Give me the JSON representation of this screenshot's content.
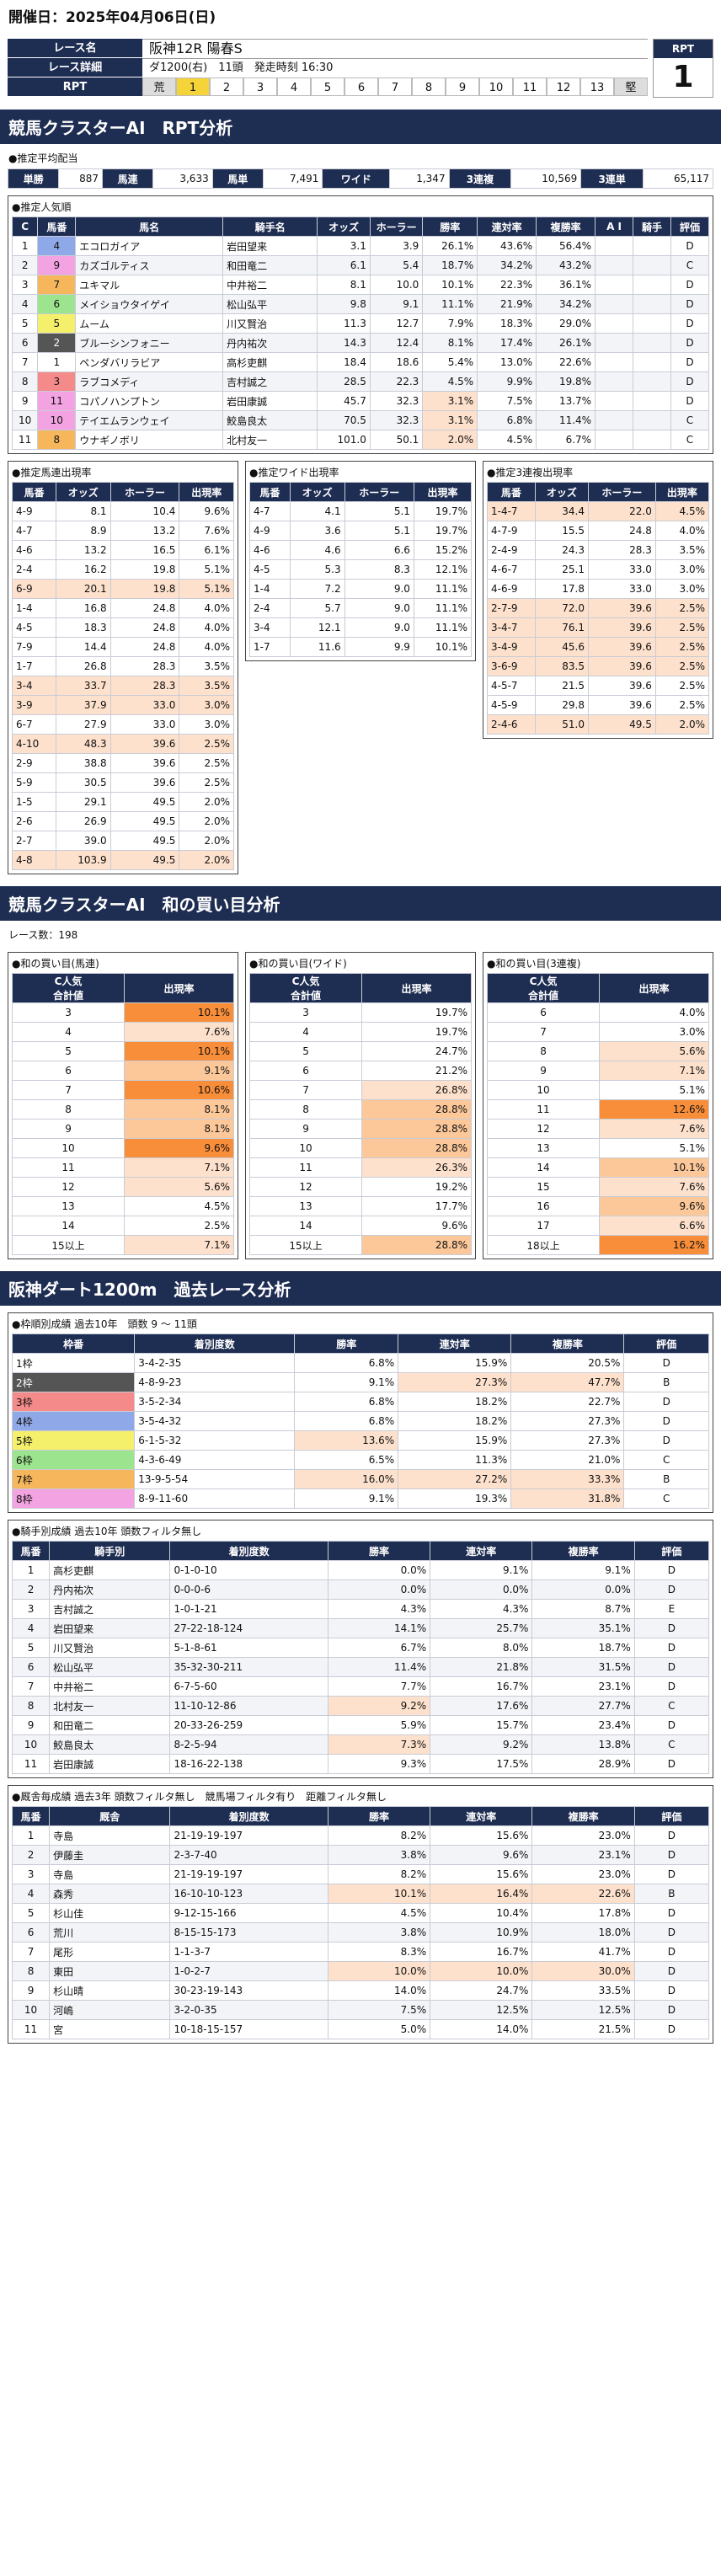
{
  "header": {
    "date": "開催日：2025年04月06日(日)"
  },
  "race": {
    "name_label": "レース名",
    "name": "阪神12R 陽春S",
    "detail_label": "レース詳細",
    "detail": "ダ1200(右)　11頭　発走時刻 16:30",
    "rpt_label": "RPT",
    "rpt_cells": [
      "荒",
      "1",
      "2",
      "3",
      "4",
      "5",
      "6",
      "7",
      "8",
      "9",
      "10",
      "11",
      "12",
      "13",
      "堅"
    ],
    "rpt_box_label": "RPT",
    "rpt_value": "1"
  },
  "section1": "競馬クラスターAI　RPT分析",
  "payout": {
    "title": "●推定平均配当",
    "items": [
      [
        "単勝",
        "887"
      ],
      [
        "馬連",
        "3,633"
      ],
      [
        "馬単",
        "7,491"
      ],
      [
        "ワイド",
        "1,347"
      ],
      [
        "3連複",
        "10,569"
      ],
      [
        "3連単",
        "65,117"
      ]
    ]
  },
  "popular": {
    "title": "●推定人気順",
    "headers": [
      "C",
      "馬番",
      "馬名",
      "騎手名",
      "オッズ",
      "ホーラー",
      "勝率",
      "連対率",
      "複勝率",
      "A I",
      "騎手",
      "評価"
    ],
    "rows": [
      [
        "1",
        "4",
        "エコロガイア",
        "岩田望来",
        "3.1",
        "3.9",
        "26.1%",
        "43.6%",
        "56.4%",
        "",
        "",
        "D"
      ],
      [
        "2",
        "9",
        "カズゴルティス",
        "和田竜二",
        "6.1",
        "5.4",
        "18.7%",
        "34.2%",
        "43.2%",
        "",
        "",
        "C"
      ],
      [
        "3",
        "7",
        "ユキマル",
        "中井裕二",
        "8.1",
        "10.0",
        "10.1%",
        "22.3%",
        "36.1%",
        "",
        "",
        "D"
      ],
      [
        "4",
        "6",
        "メイショウタイゲイ",
        "松山弘平",
        "9.8",
        "9.1",
        "11.1%",
        "21.9%",
        "34.2%",
        "",
        "",
        "D"
      ],
      [
        "5",
        "5",
        "ムーム",
        "川又賢治",
        "11.3",
        "12.7",
        "7.9%",
        "18.3%",
        "29.0%",
        "",
        "",
        "D"
      ],
      [
        "6",
        "2",
        "ブルーシンフォニー",
        "丹内祐次",
        "14.3",
        "12.4",
        "8.1%",
        "17.4%",
        "26.1%",
        "",
        "",
        "D"
      ],
      [
        "7",
        "1",
        "ペンダバリラビア",
        "高杉吏麒",
        "18.4",
        "18.6",
        "5.4%",
        "13.0%",
        "22.6%",
        "",
        "",
        "D"
      ],
      [
        "8",
        "3",
        "ラブコメディ",
        "吉村誠之",
        "28.5",
        "22.3",
        "4.5%",
        "9.9%",
        "19.8%",
        "",
        "",
        "D"
      ],
      [
        "9",
        "11",
        "コパノハンプトン",
        "岩田康誠",
        "45.7",
        "32.3",
        "3.1%",
        "7.5%",
        "13.7%",
        "",
        "",
        "D"
      ],
      [
        "10",
        "10",
        "テイエムランウェイ",
        "鮫島良太",
        "70.5",
        "32.3",
        "3.1%",
        "6.8%",
        "11.4%",
        "",
        "",
        "C"
      ],
      [
        "11",
        "8",
        "ウナギノボリ",
        "北村友一",
        "101.0",
        "50.1",
        "2.0%",
        "4.5%",
        "6.7%",
        "",
        "",
        "C"
      ]
    ]
  },
  "umaren": {
    "title": "●推定馬連出現率",
    "headers": [
      "馬番",
      "オッズ",
      "ホーラー",
      "出現率"
    ],
    "rows": [
      [
        "4-9",
        "8.1",
        "10.4",
        "9.6%"
      ],
      [
        "4-7",
        "8.9",
        "13.2",
        "7.6%"
      ],
      [
        "4-6",
        "13.2",
        "16.5",
        "6.1%"
      ],
      [
        "2-4",
        "16.2",
        "19.8",
        "5.1%"
      ],
      [
        "6-9",
        "20.1",
        "19.8",
        "5.1%"
      ],
      [
        "1-4",
        "16.8",
        "24.8",
        "4.0%"
      ],
      [
        "4-5",
        "18.3",
        "24.8",
        "4.0%"
      ],
      [
        "7-9",
        "14.4",
        "24.8",
        "4.0%"
      ],
      [
        "1-7",
        "26.8",
        "28.3",
        "3.5%"
      ],
      [
        "3-4",
        "33.7",
        "28.3",
        "3.5%"
      ],
      [
        "3-9",
        "37.9",
        "33.0",
        "3.0%"
      ],
      [
        "6-7",
        "27.9",
        "33.0",
        "3.0%"
      ],
      [
        "4-10",
        "48.3",
        "39.6",
        "2.5%"
      ],
      [
        "2-9",
        "38.8",
        "39.6",
        "2.5%"
      ],
      [
        "5-9",
        "30.5",
        "39.6",
        "2.5%"
      ],
      [
        "1-5",
        "29.1",
        "49.5",
        "2.0%"
      ],
      [
        "2-6",
        "26.9",
        "49.5",
        "2.0%"
      ],
      [
        "2-7",
        "39.0",
        "49.5",
        "2.0%"
      ],
      [
        "4-8",
        "103.9",
        "49.5",
        "2.0%"
      ]
    ]
  },
  "wide": {
    "title": "●推定ワイド出現率",
    "headers": [
      "馬番",
      "オッズ",
      "ホーラー",
      "出現率"
    ],
    "rows": [
      [
        "4-7",
        "4.1",
        "5.1",
        "19.7%"
      ],
      [
        "4-9",
        "3.6",
        "5.1",
        "19.7%"
      ],
      [
        "4-6",
        "4.6",
        "6.6",
        "15.2%"
      ],
      [
        "4-5",
        "5.3",
        "8.3",
        "12.1%"
      ],
      [
        "1-4",
        "7.2",
        "9.0",
        "11.1%"
      ],
      [
        "2-4",
        "5.7",
        "9.0",
        "11.1%"
      ],
      [
        "3-4",
        "12.1",
        "9.0",
        "11.1%"
      ],
      [
        "1-7",
        "11.6",
        "9.9",
        "10.1%"
      ]
    ]
  },
  "trio": {
    "title": "●推定3連複出現率",
    "headers": [
      "馬番",
      "オッズ",
      "ホーラー",
      "出現率"
    ],
    "rows": [
      [
        "1-4-7",
        "34.4",
        "22.0",
        "4.5%"
      ],
      [
        "4-7-9",
        "15.5",
        "24.8",
        "4.0%"
      ],
      [
        "2-4-9",
        "24.3",
        "28.3",
        "3.5%"
      ],
      [
        "4-6-7",
        "25.1",
        "33.0",
        "3.0%"
      ],
      [
        "4-6-9",
        "17.8",
        "33.0",
        "3.0%"
      ],
      [
        "2-7-9",
        "72.0",
        "39.6",
        "2.5%"
      ],
      [
        "3-4-7",
        "76.1",
        "39.6",
        "2.5%"
      ],
      [
        "3-4-9",
        "45.6",
        "39.6",
        "2.5%"
      ],
      [
        "3-6-9",
        "83.5",
        "39.6",
        "2.5%"
      ],
      [
        "4-5-7",
        "21.5",
        "39.6",
        "2.5%"
      ],
      [
        "4-5-9",
        "29.8",
        "39.6",
        "2.5%"
      ],
      [
        "2-4-6",
        "51.0",
        "49.5",
        "2.0%"
      ]
    ]
  },
  "section2": "競馬クラスターAI　和の買い目分析",
  "race_count": "レース数：198",
  "sum_umaren": {
    "title": "●和の買い目(馬連)",
    "headers": [
      "C人気\n合計値",
      "出現率"
    ],
    "rows": [
      [
        "3",
        "10.1%"
      ],
      [
        "4",
        "7.6%"
      ],
      [
        "5",
        "10.1%"
      ],
      [
        "6",
        "9.1%"
      ],
      [
        "7",
        "10.6%"
      ],
      [
        "8",
        "8.1%"
      ],
      [
        "9",
        "8.1%"
      ],
      [
        "10",
        "9.6%"
      ],
      [
        "11",
        "7.1%"
      ],
      [
        "12",
        "5.6%"
      ],
      [
        "13",
        "4.5%"
      ],
      [
        "14",
        "2.5%"
      ],
      [
        "15以上",
        "7.1%"
      ]
    ]
  },
  "sum_wide": {
    "title": "●和の買い目(ワイド)",
    "headers": [
      "C人気\n合計値",
      "出現率"
    ],
    "rows": [
      [
        "3",
        "19.7%"
      ],
      [
        "4",
        "19.7%"
      ],
      [
        "5",
        "24.7%"
      ],
      [
        "6",
        "21.2%"
      ],
      [
        "7",
        "26.8%"
      ],
      [
        "8",
        "28.8%"
      ],
      [
        "9",
        "28.8%"
      ],
      [
        "10",
        "28.8%"
      ],
      [
        "11",
        "26.3%"
      ],
      [
        "12",
        "19.2%"
      ],
      [
        "13",
        "17.7%"
      ],
      [
        "14",
        "9.6%"
      ],
      [
        "15以上",
        "28.8%"
      ]
    ]
  },
  "sum_trio": {
    "title": "●和の買い目(3連複)",
    "headers": [
      "C人気\n合計値",
      "出現率"
    ],
    "rows": [
      [
        "6",
        "4.0%"
      ],
      [
        "7",
        "3.0%"
      ],
      [
        "8",
        "5.6%"
      ],
      [
        "9",
        "7.1%"
      ],
      [
        "10",
        "5.1%"
      ],
      [
        "11",
        "12.6%"
      ],
      [
        "12",
        "7.6%"
      ],
      [
        "13",
        "5.1%"
      ],
      [
        "14",
        "10.1%"
      ],
      [
        "15",
        "7.6%"
      ],
      [
        "16",
        "9.6%"
      ],
      [
        "17",
        "6.6%"
      ],
      [
        "18以上",
        "16.2%"
      ]
    ]
  },
  "section3": "阪神ダート1200m　過去レース分析",
  "waku": {
    "title": "●枠順別成績 過去10年　頭数 9 ～ 11頭",
    "headers": [
      "枠番",
      "着別度数",
      "勝率",
      "連対率",
      "複勝率",
      "評価"
    ],
    "rows": [
      [
        "1枠",
        "3-4-2-35",
        "6.8%",
        "15.9%",
        "20.5%",
        "D"
      ],
      [
        "2枠",
        "4-8-9-23",
        "9.1%",
        "27.3%",
        "47.7%",
        "B"
      ],
      [
        "3枠",
        "3-5-2-34",
        "6.8%",
        "18.2%",
        "22.7%",
        "D"
      ],
      [
        "4枠",
        "3-5-4-32",
        "6.8%",
        "18.2%",
        "27.3%",
        "D"
      ],
      [
        "5枠",
        "6-1-5-32",
        "13.6%",
        "15.9%",
        "27.3%",
        "D"
      ],
      [
        "6枠",
        "4-3-6-49",
        "6.5%",
        "11.3%",
        "21.0%",
        "C"
      ],
      [
        "7枠",
        "13-9-5-54",
        "16.0%",
        "27.2%",
        "33.3%",
        "B"
      ],
      [
        "8枠",
        "8-9-11-60",
        "9.1%",
        "19.3%",
        "31.8%",
        "C"
      ]
    ]
  },
  "jockey": {
    "title": "●騎手別成績 過去10年 頭数フィルタ無し",
    "headers": [
      "馬番",
      "騎手別",
      "着別度数",
      "勝率",
      "連対率",
      "複勝率",
      "評価"
    ],
    "rows": [
      [
        "1",
        "高杉吏麒",
        "0-1-0-10",
        "0.0%",
        "9.1%",
        "9.1%",
        "D"
      ],
      [
        "2",
        "丹内祐次",
        "0-0-0-6",
        "0.0%",
        "0.0%",
        "0.0%",
        "D"
      ],
      [
        "3",
        "吉村誠之",
        "1-0-1-21",
        "4.3%",
        "4.3%",
        "8.7%",
        "E"
      ],
      [
        "4",
        "岩田望来",
        "27-22-18-124",
        "14.1%",
        "25.7%",
        "35.1%",
        "D"
      ],
      [
        "5",
        "川又賢治",
        "5-1-8-61",
        "6.7%",
        "8.0%",
        "18.7%",
        "D"
      ],
      [
        "6",
        "松山弘平",
        "35-32-30-211",
        "11.4%",
        "21.8%",
        "31.5%",
        "D"
      ],
      [
        "7",
        "中井裕二",
        "6-7-5-60",
        "7.7%",
        "16.7%",
        "23.1%",
        "D"
      ],
      [
        "8",
        "北村友一",
        "11-10-12-86",
        "9.2%",
        "17.6%",
        "27.7%",
        "C"
      ],
      [
        "9",
        "和田竜二",
        "20-33-26-259",
        "5.9%",
        "15.7%",
        "23.4%",
        "D"
      ],
      [
        "10",
        "鮫島良太",
        "8-2-5-94",
        "7.3%",
        "9.2%",
        "13.8%",
        "C"
      ],
      [
        "11",
        "岩田康誠",
        "18-16-22-138",
        "9.3%",
        "17.5%",
        "28.9%",
        "D"
      ]
    ]
  },
  "stable": {
    "title": "●厩舎毎成績 過去3年 頭数フィルタ無し　競馬場フィルタ有り　距離フィルタ無し",
    "headers": [
      "馬番",
      "厩舎",
      "着別度数",
      "勝率",
      "連対率",
      "複勝率",
      "評価"
    ],
    "rows": [
      [
        "1",
        "寺島",
        "21-19-19-197",
        "8.2%",
        "15.6%",
        "23.0%",
        "D"
      ],
      [
        "2",
        "伊藤圭",
        "2-3-7-40",
        "3.8%",
        "9.6%",
        "23.1%",
        "D"
      ],
      [
        "3",
        "寺島",
        "21-19-19-197",
        "8.2%",
        "15.6%",
        "23.0%",
        "D"
      ],
      [
        "4",
        "森秀",
        "16-10-10-123",
        "10.1%",
        "16.4%",
        "22.6%",
        "B"
      ],
      [
        "5",
        "杉山佳",
        "9-12-15-166",
        "4.5%",
        "10.4%",
        "17.8%",
        "D"
      ],
      [
        "6",
        "荒川",
        "8-15-15-173",
        "3.8%",
        "10.9%",
        "18.0%",
        "D"
      ],
      [
        "7",
        "尾形",
        "1-1-3-7",
        "8.3%",
        "16.7%",
        "41.7%",
        "D"
      ],
      [
        "8",
        "東田",
        "1-0-2-7",
        "10.0%",
        "10.0%",
        "30.0%",
        "D"
      ],
      [
        "9",
        "杉山晴",
        "30-23-19-143",
        "14.0%",
        "24.7%",
        "33.5%",
        "D"
      ],
      [
        "10",
        "河嶋",
        "3-2-0-35",
        "7.5%",
        "12.5%",
        "12.5%",
        "D"
      ],
      [
        "11",
        "宮",
        "10-18-15-157",
        "5.0%",
        "14.0%",
        "21.5%",
        "D"
      ]
    ]
  },
  "colors": {
    "navy": "#1e2d52",
    "highlight": "#f98e3a"
  }
}
